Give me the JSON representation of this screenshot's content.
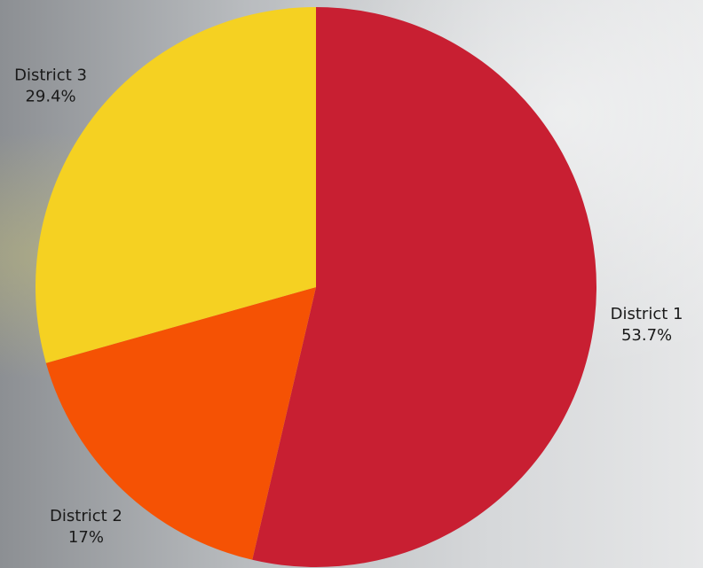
{
  "chart_data": {
    "type": "pie",
    "categories": [
      "District 1",
      "District 2",
      "District 3"
    ],
    "values": [
      53.7,
      17,
      29.4
    ],
    "value_labels": [
      "53.7%",
      "17%",
      "29.4%"
    ],
    "colors": [
      "#c81f32",
      "#f55204",
      "#f5d122"
    ]
  }
}
